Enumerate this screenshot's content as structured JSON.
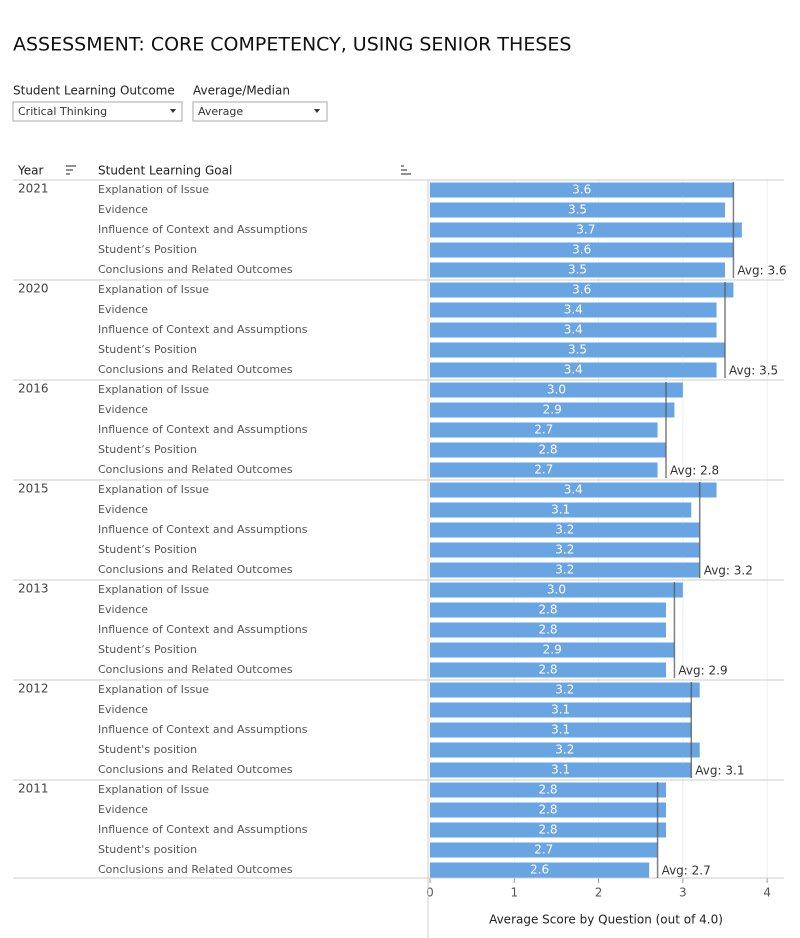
{
  "header": {
    "title": "ASSESSMENT: CORE COMPETENCY, USING SENIOR THESES"
  },
  "filters": [
    {
      "label": "Student Learning Outcome",
      "value": "Critical Thinking"
    },
    {
      "label": "Average/Median",
      "value": "Average"
    }
  ],
  "chart_data": {
    "type": "bar",
    "column_headers": [
      "Year",
      "Student Learning Goal"
    ],
    "x_label": "Average Score by Question (out of 4.0)",
    "xlim": [
      0,
      4.2
    ],
    "xticks": [
      0,
      1,
      2,
      3,
      4
    ],
    "color": "#6aa5e3",
    "grid": true,
    "groups": [
      {
        "name": "2021",
        "categories": [
          "Explanation of Issue",
          "Evidence",
          "Influence of Context and Assumptions",
          "Student’s Position",
          "Conclusions and Related Outcomes"
        ],
        "values": [
          3.6,
          3.5,
          3.7,
          3.6,
          3.5
        ],
        "value_labels": [
          "3.6",
          "3.5",
          "3.7",
          "3.6",
          "3.5"
        ],
        "average": {
          "value": 3.6,
          "label": "Avg: 3.6"
        }
      },
      {
        "name": "2020",
        "categories": [
          "Explanation of Issue",
          "Evidence",
          "Influence of Context and Assumptions",
          "Student’s Position",
          "Conclusions and Related Outcomes"
        ],
        "values": [
          3.6,
          3.4,
          3.4,
          3.5,
          3.4
        ],
        "value_labels": [
          "3.6",
          "3.4",
          "3.4",
          "3.5",
          "3.4"
        ],
        "average": {
          "value": 3.5,
          "label": "Avg: 3.5"
        }
      },
      {
        "name": "2016",
        "categories": [
          "Explanation of Issue",
          "Evidence",
          "Influence of Context and Assumptions",
          "Student’s Position",
          "Conclusions and Related Outcomes"
        ],
        "values": [
          3.0,
          2.9,
          2.7,
          2.8,
          2.7
        ],
        "value_labels": [
          "3.0",
          "2.9",
          "2.7",
          "2.8",
          "2.7"
        ],
        "average": {
          "value": 2.8,
          "label": "Avg: 2.8"
        }
      },
      {
        "name": "2015",
        "categories": [
          "Explanation of Issue",
          "Evidence",
          "Influence of Context and Assumptions",
          "Student’s Position",
          "Conclusions and Related Outcomes"
        ],
        "values": [
          3.4,
          3.1,
          3.2,
          3.2,
          3.2
        ],
        "value_labels": [
          "3.4",
          "3.1",
          "3.2",
          "3.2",
          "3.2"
        ],
        "average": {
          "value": 3.2,
          "label": "Avg: 3.2"
        }
      },
      {
        "name": "2013",
        "categories": [
          "Explanation of Issue",
          "Evidence",
          "Influence of Context and Assumptions",
          "Student’s Position",
          "Conclusions and Related Outcomes"
        ],
        "values": [
          3.0,
          2.8,
          2.8,
          2.9,
          2.8
        ],
        "value_labels": [
          "3.0",
          "2.8",
          "2.8",
          "2.9",
          "2.8"
        ],
        "average": {
          "value": 2.9,
          "label": "Avg: 2.9"
        }
      },
      {
        "name": "2012",
        "categories": [
          "Explanation of Issue",
          "Evidence",
          "Influence of Context and Assumptions",
          "Student's position",
          "Conclusions and Related Outcomes"
        ],
        "values": [
          3.2,
          3.1,
          3.1,
          3.2,
          3.1
        ],
        "value_labels": [
          "3.2",
          "3.1",
          "3.1",
          "3.2",
          "3.1"
        ],
        "average": {
          "value": 3.1,
          "label": "Avg: 3.1"
        }
      },
      {
        "name": "2011",
        "categories": [
          "Explanation of Issue",
          "Evidence",
          "Influence of Context and Assumptions",
          "Student's position",
          "Conclusions and Related Outcomes"
        ],
        "values": [
          2.8,
          2.8,
          2.8,
          2.7,
          2.6
        ],
        "value_labels": [
          "2.8",
          "2.8",
          "2.8",
          "2.7",
          "2.6"
        ],
        "average": {
          "value": 2.7,
          "label": "Avg: 2.7"
        }
      }
    ]
  }
}
